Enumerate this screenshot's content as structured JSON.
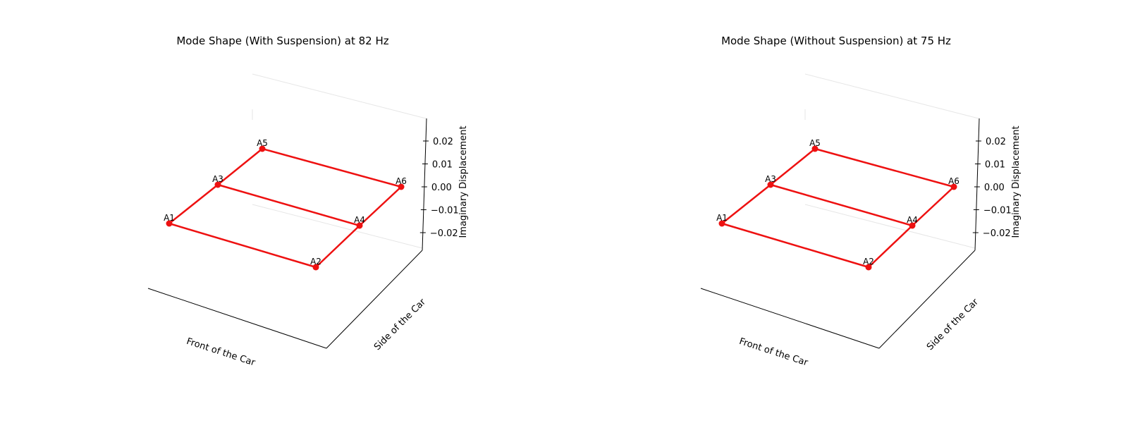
{
  "chart_data": [
    {
      "type": "scatter",
      "title": "Mode Shape (With Suspension) at 82 Hz",
      "xlabel": "Front of the Car",
      "ylabel": "Side of the Car",
      "zlabel": "Imaginary Displacement",
      "zlim": [
        -0.027,
        0.027
      ],
      "zticks": [
        "0.02",
        "0.01",
        "0.00",
        "−0.01",
        "−0.02"
      ],
      "zticks_values": [
        0.02,
        0.01,
        0.0,
        -0.01,
        -0.02
      ],
      "grid": false,
      "points": [
        {
          "name": "A1",
          "z": 0.0
        },
        {
          "name": "A2",
          "z": 0.0
        },
        {
          "name": "A3",
          "z": 0.0
        },
        {
          "name": "A4",
          "z": 0.0
        },
        {
          "name": "A5",
          "z": 0.0
        },
        {
          "name": "A6",
          "z": 0.0
        }
      ],
      "edges": [
        [
          "A1",
          "A2"
        ],
        [
          "A3",
          "A4"
        ],
        [
          "A5",
          "A6"
        ],
        [
          "A1",
          "A3"
        ],
        [
          "A3",
          "A5"
        ],
        [
          "A2",
          "A4"
        ],
        [
          "A4",
          "A6"
        ]
      ],
      "color": "#ee1111"
    },
    {
      "type": "scatter",
      "title": "Mode Shape (Without Suspension) at 75 Hz",
      "xlabel": "Front of the Car",
      "ylabel": "Side of the Car",
      "zlabel": "Imaginary Displacement",
      "zlim": [
        -0.027,
        0.027
      ],
      "zticks": [
        "0.02",
        "0.01",
        "0.00",
        "−0.01",
        "−0.02"
      ],
      "zticks_values": [
        0.02,
        0.01,
        0.0,
        -0.01,
        -0.02
      ],
      "grid": false,
      "points": [
        {
          "name": "A1",
          "z": 0.0
        },
        {
          "name": "A2",
          "z": 0.0
        },
        {
          "name": "A3",
          "z": 0.0
        },
        {
          "name": "A4",
          "z": 0.0
        },
        {
          "name": "A5",
          "z": 0.0
        },
        {
          "name": "A6",
          "z": 0.0
        }
      ],
      "edges": [
        [
          "A1",
          "A2"
        ],
        [
          "A3",
          "A4"
        ],
        [
          "A5",
          "A6"
        ],
        [
          "A1",
          "A3"
        ],
        [
          "A3",
          "A5"
        ],
        [
          "A2",
          "A4"
        ],
        [
          "A4",
          "A6"
        ]
      ],
      "color": "#ee1111"
    }
  ]
}
